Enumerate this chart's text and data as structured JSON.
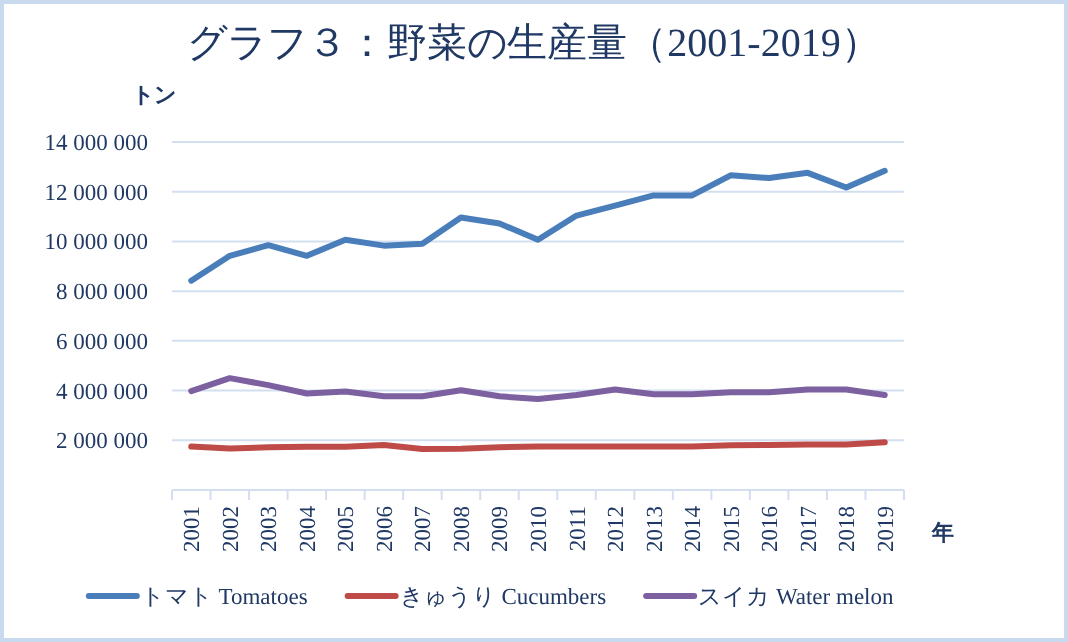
{
  "chart_data": {
    "type": "line",
    "title": "グラフ３：野菜の生産量（2001-2019）",
    "ylabel": "トン",
    "xlabel": "年",
    "categories": [
      "2001",
      "2002",
      "2003",
      "2004",
      "2005",
      "2006",
      "2007",
      "2008",
      "2009",
      "2010",
      "2011",
      "2012",
      "2013",
      "2014",
      "2015",
      "2016",
      "2017",
      "2018",
      "2019"
    ],
    "series": [
      {
        "name": "トマト Tomatoes",
        "color": "#4a7ebb",
        "values": [
          8420000,
          9420000,
          9850000,
          9420000,
          10070000,
          9830000,
          9910000,
          10960000,
          10720000,
          10070000,
          11040000,
          11440000,
          11850000,
          11850000,
          12660000,
          12550000,
          12760000,
          12170000,
          12840000
        ]
      },
      {
        "name": "きゅうり Cucumbers",
        "color": "#be4b48",
        "values": [
          1750000,
          1670000,
          1720000,
          1740000,
          1740000,
          1810000,
          1650000,
          1660000,
          1720000,
          1750000,
          1750000,
          1750000,
          1750000,
          1750000,
          1800000,
          1810000,
          1830000,
          1830000,
          1920000
        ]
      },
      {
        "name": "スイカ Water melon",
        "color": "#7d60a0",
        "values": [
          3980000,
          4500000,
          4220000,
          3880000,
          3960000,
          3770000,
          3770000,
          4010000,
          3770000,
          3660000,
          3820000,
          4040000,
          3850000,
          3850000,
          3930000,
          3930000,
          4040000,
          4040000,
          3820000
        ]
      }
    ],
    "ylim": [
      0,
      14000000
    ],
    "yticks": [
      {
        "value": 2000000,
        "label": "2 000 000"
      },
      {
        "value": 4000000,
        "label": "4 000 000"
      },
      {
        "value": 6000000,
        "label": "6 000 000"
      },
      {
        "value": 8000000,
        "label": "8 000 000"
      },
      {
        "value": 10000000,
        "label": "10 000 000"
      },
      {
        "value": 12000000,
        "label": "12 000 000"
      },
      {
        "value": 14000000,
        "label": "14 000 000"
      }
    ],
    "grid": "y",
    "legend": "bottom",
    "line_style": "solid",
    "marker": "none"
  }
}
